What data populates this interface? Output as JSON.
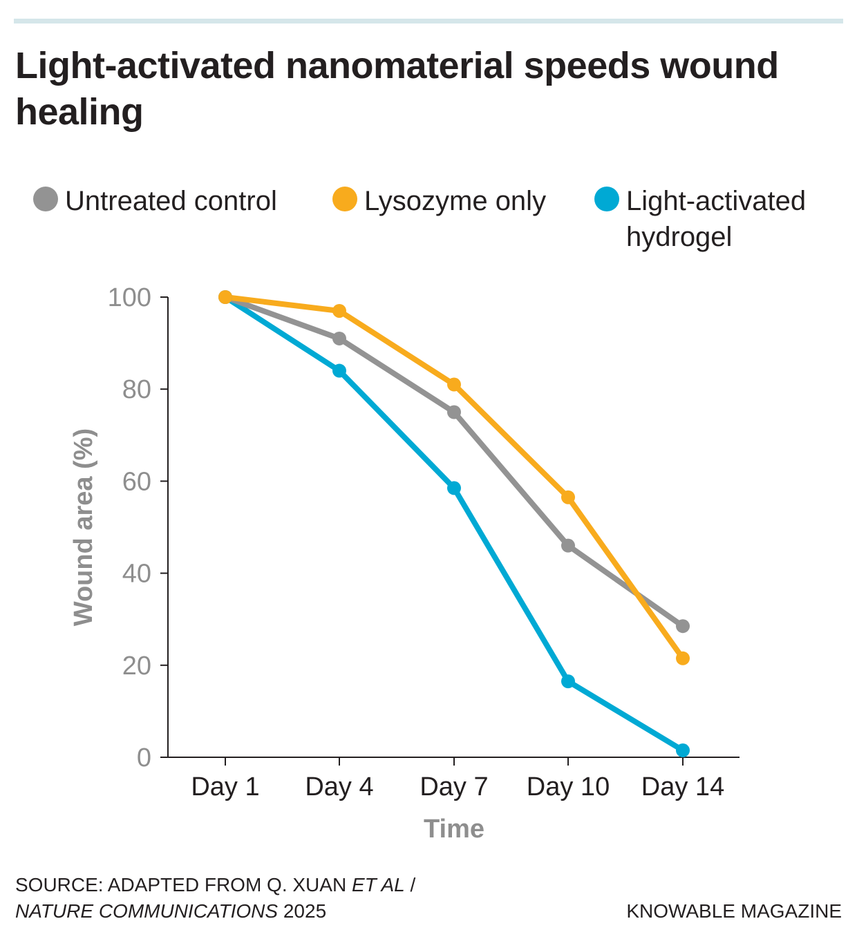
{
  "header": {
    "title": "Light-activated nanomaterial speeds wound healing"
  },
  "colors": {
    "untreated": "#939393",
    "lysozyme": "#f8ab1d",
    "hydrogel": "#00a9d4",
    "axis_text": "#8e8e8e",
    "top_rule": "#d5e6ea"
  },
  "legend": [
    {
      "label": "Untreated control",
      "color": "#939393"
    },
    {
      "label": "Lysozyme only",
      "color": "#f8ab1d"
    },
    {
      "label": "Light-activated hydrogel",
      "color": "#00a9d4"
    }
  ],
  "chart_data": {
    "type": "line",
    "title": "Light-activated nanomaterial speeds wound healing",
    "xlabel": "Time",
    "ylabel": "Wound area (%)",
    "categories": [
      "Day 1",
      "Day 4",
      "Day 7",
      "Day 10",
      "Day 14"
    ],
    "ylim": [
      0,
      100
    ],
    "yticks": [
      0,
      20,
      40,
      60,
      80,
      100
    ],
    "grid": false,
    "legend_position": "top",
    "series": [
      {
        "name": "Untreated control",
        "color": "#939393",
        "values": [
          100,
          91,
          75,
          46,
          28.5
        ]
      },
      {
        "name": "Lysozyme only",
        "color": "#f8ab1d",
        "values": [
          100,
          97,
          81,
          56.5,
          21.5
        ]
      },
      {
        "name": "Light-activated hydrogel",
        "color": "#00a9d4",
        "values": [
          100,
          84,
          58.5,
          16.5,
          1.5
        ]
      }
    ]
  },
  "footer": {
    "source_prefix": "SOURCE: ADAPTED FROM Q. XUAN ",
    "source_et_al": "ET AL",
    "source_sep": " /",
    "source_journal": "NATURE COMMUNICATIONS",
    "source_year": " 2025",
    "credit": "KNOWABLE MAGAZINE"
  }
}
